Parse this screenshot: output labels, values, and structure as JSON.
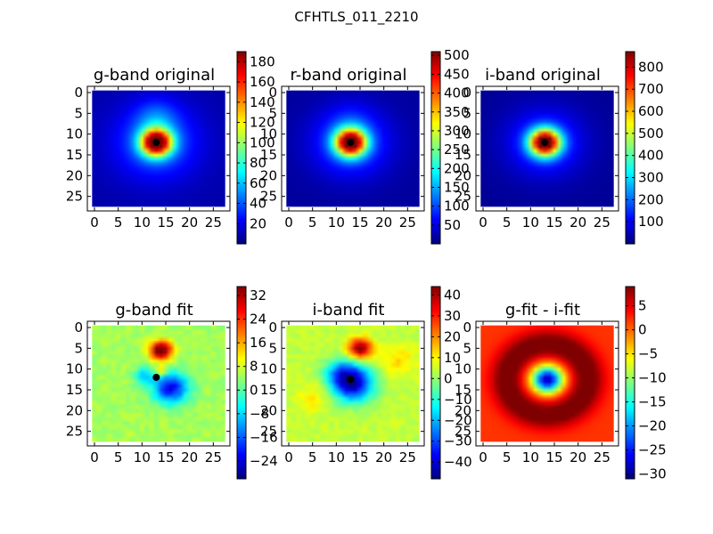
{
  "figure": {
    "suptitle": "CFHTLS_011_2210"
  },
  "colors": {
    "jet": [
      "#00007f",
      "#0000ff",
      "#007fff",
      "#00ffff",
      "#7fff7f",
      "#ffff00",
      "#ff7f00",
      "#ff0000",
      "#7f0000"
    ],
    "marker": "#000000",
    "axes_frame": "#000000"
  },
  "chart_data": [
    {
      "type": "heatmap",
      "title": "g-band original",
      "xticks": [
        "0",
        "5",
        "10",
        "15",
        "20",
        "25"
      ],
      "yticks": [
        "0",
        "5",
        "10",
        "15",
        "20",
        "25"
      ],
      "xlim": [
        -1.5,
        28.5
      ],
      "ylim": [
        28.5,
        -1.5
      ],
      "extent": [
        -0.5,
        27.5,
        -0.5,
        27.5
      ],
      "colorbar": {
        "min": 0,
        "max": 190,
        "ticks": [
          "20",
          "40",
          "60",
          "80",
          "100",
          "120",
          "140",
          "160",
          "180"
        ],
        "tick_values": [
          20,
          40,
          60,
          80,
          100,
          120,
          140,
          160,
          180
        ]
      },
      "features": [
        {
          "kind": "peak",
          "x": 13,
          "y": 12,
          "value": 190,
          "sigma": 2.2
        },
        {
          "kind": "halo",
          "x": 13,
          "y": 12,
          "value": 40,
          "sigma": 6
        },
        {
          "kind": "blob",
          "x": 13,
          "y": 6,
          "value": 22,
          "sigma": 3
        }
      ],
      "background": 8,
      "marker": {
        "x": 13,
        "y": 12
      }
    },
    {
      "type": "heatmap",
      "title": "r-band original",
      "xticks": [
        "0",
        "5",
        "10",
        "15",
        "20",
        "25"
      ],
      "yticks": [
        "0",
        "5",
        "10",
        "15",
        "20",
        "25"
      ],
      "xlim": [
        -1.5,
        28.5
      ],
      "ylim": [
        28.5,
        -1.5
      ],
      "extent": [
        -0.5,
        27.5,
        -0.5,
        27.5
      ],
      "colorbar": {
        "min": 0,
        "max": 510,
        "ticks": [
          "50",
          "100",
          "150",
          "200",
          "250",
          "300",
          "350",
          "400",
          "450",
          "500"
        ],
        "tick_values": [
          50,
          100,
          150,
          200,
          250,
          300,
          350,
          400,
          450,
          500
        ]
      },
      "features": [
        {
          "kind": "peak",
          "x": 13,
          "y": 12,
          "value": 500,
          "sigma": 2.2
        },
        {
          "kind": "halo",
          "x": 13,
          "y": 12,
          "value": 110,
          "sigma": 5.5
        },
        {
          "kind": "blob",
          "x": 13,
          "y": 7,
          "value": 25,
          "sigma": 3
        }
      ],
      "background": 15,
      "marker": {
        "x": 13,
        "y": 12
      }
    },
    {
      "type": "heatmap",
      "title": "i-band original",
      "xticks": [
        "0",
        "5",
        "10",
        "15",
        "20",
        "25"
      ],
      "yticks": [
        "0",
        "5",
        "10",
        "15",
        "20",
        "25"
      ],
      "xlim": [
        -1.5,
        28.5
      ],
      "ylim": [
        28.5,
        -1.5
      ],
      "extent": [
        -0.5,
        27.5,
        -0.5,
        27.5
      ],
      "colorbar": {
        "min": 0,
        "max": 870,
        "ticks": [
          "100",
          "200",
          "300",
          "400",
          "500",
          "600",
          "700",
          "800"
        ],
        "tick_values": [
          100,
          200,
          300,
          400,
          500,
          600,
          700,
          800
        ]
      },
      "features": [
        {
          "kind": "peak",
          "x": 13,
          "y": 12,
          "value": 860,
          "sigma": 2.2
        },
        {
          "kind": "halo",
          "x": 13,
          "y": 12,
          "value": 160,
          "sigma": 5.5
        }
      ],
      "background": 20,
      "marker": {
        "x": 13,
        "y": 12
      }
    },
    {
      "type": "heatmap",
      "title": "g-band fit",
      "xticks": [
        "0",
        "5",
        "10",
        "15",
        "20",
        "25"
      ],
      "yticks": [
        "0",
        "5",
        "10",
        "15",
        "20",
        "25"
      ],
      "xlim": [
        -1.5,
        28.5
      ],
      "ylim": [
        28.5,
        -1.5
      ],
      "extent": [
        -0.5,
        27.5,
        -0.5,
        27.5
      ],
      "colorbar": {
        "min": -30,
        "max": 35,
        "ticks": [
          "−24",
          "−16",
          "−8",
          "0",
          "8",
          "16",
          "24",
          "32"
        ],
        "tick_values": [
          -24,
          -16,
          -8,
          0,
          8,
          16,
          24,
          32
        ]
      },
      "features": [
        {
          "kind": "blob",
          "x": 14,
          "y": 5.5,
          "value": 36,
          "sigma": 1.6
        },
        {
          "kind": "blob",
          "x": 16,
          "y": 14.5,
          "value": -28,
          "sigma": 2.6
        },
        {
          "kind": "blob",
          "x": 14,
          "y": 10.5,
          "value": 12,
          "sigma": 0.9
        },
        {
          "kind": "blob",
          "x": 10.5,
          "y": 11.5,
          "value": -12,
          "sigma": 1.5
        }
      ],
      "background": 5,
      "noise": 2,
      "marker": {
        "x": 13,
        "y": 12
      }
    },
    {
      "type": "heatmap",
      "title": "i-band fit",
      "xticks": [
        "0",
        "5",
        "10",
        "15",
        "20",
        "25"
      ],
      "yticks": [
        "0",
        "5",
        "10",
        "15",
        "20",
        "25"
      ],
      "xlim": [
        -1.5,
        28.5
      ],
      "ylim": [
        28.5,
        -1.5
      ],
      "extent": [
        -0.5,
        27.5,
        -0.5,
        27.5
      ],
      "colorbar": {
        "min": -48,
        "max": 44,
        "ticks": [
          "−40",
          "−30",
          "−20",
          "−10",
          "0",
          "10",
          "20",
          "30",
          "40"
        ],
        "tick_values": [
          -40,
          -30,
          -20,
          -10,
          0,
          10,
          20,
          30,
          40
        ]
      },
      "features": [
        {
          "kind": "blob",
          "x": 15,
          "y": 5,
          "value": 42,
          "sigma": 1.7
        },
        {
          "kind": "blob",
          "x": 13.5,
          "y": 13.5,
          "value": -45,
          "sigma": 3
        },
        {
          "kind": "blob",
          "x": 11,
          "y": 11,
          "value": -20,
          "sigma": 2.5
        },
        {
          "kind": "blob",
          "x": 23,
          "y": 8,
          "value": 9,
          "sigma": 2.5
        },
        {
          "kind": "blob",
          "x": 5,
          "y": 17,
          "value": 7,
          "sigma": 2.5
        }
      ],
      "background": 4,
      "noise": 2.5,
      "marker": {
        "x": 13,
        "y": 12.5
      }
    },
    {
      "type": "heatmap",
      "title": "g-fit - i-fit",
      "xticks": [
        "0",
        "5",
        "10",
        "15",
        "20",
        "25"
      ],
      "yticks": [
        "0",
        "5",
        "10",
        "15",
        "20",
        "25"
      ],
      "xlim": [
        -1.5,
        28.5
      ],
      "ylim": [
        28.5,
        -1.5
      ],
      "extent": [
        -0.5,
        27.5,
        -0.5,
        27.5
      ],
      "colorbar": {
        "min": -31,
        "max": 9,
        "ticks": [
          "−30",
          "−25",
          "−20",
          "−15",
          "−10",
          "−5",
          "0",
          "5"
        ],
        "tick_values": [
          -30,
          -25,
          -20,
          -15,
          -10,
          -5,
          0,
          5
        ]
      },
      "features": [
        {
          "kind": "center",
          "x": 13.5,
          "y": 12.5,
          "value": -31,
          "sigma": 2.2
        },
        {
          "kind": "ring",
          "x": 13.5,
          "y": 12.5,
          "value": 9,
          "radius": 8.5,
          "width": 2.3
        }
      ],
      "background": 2,
      "marker": null
    }
  ]
}
